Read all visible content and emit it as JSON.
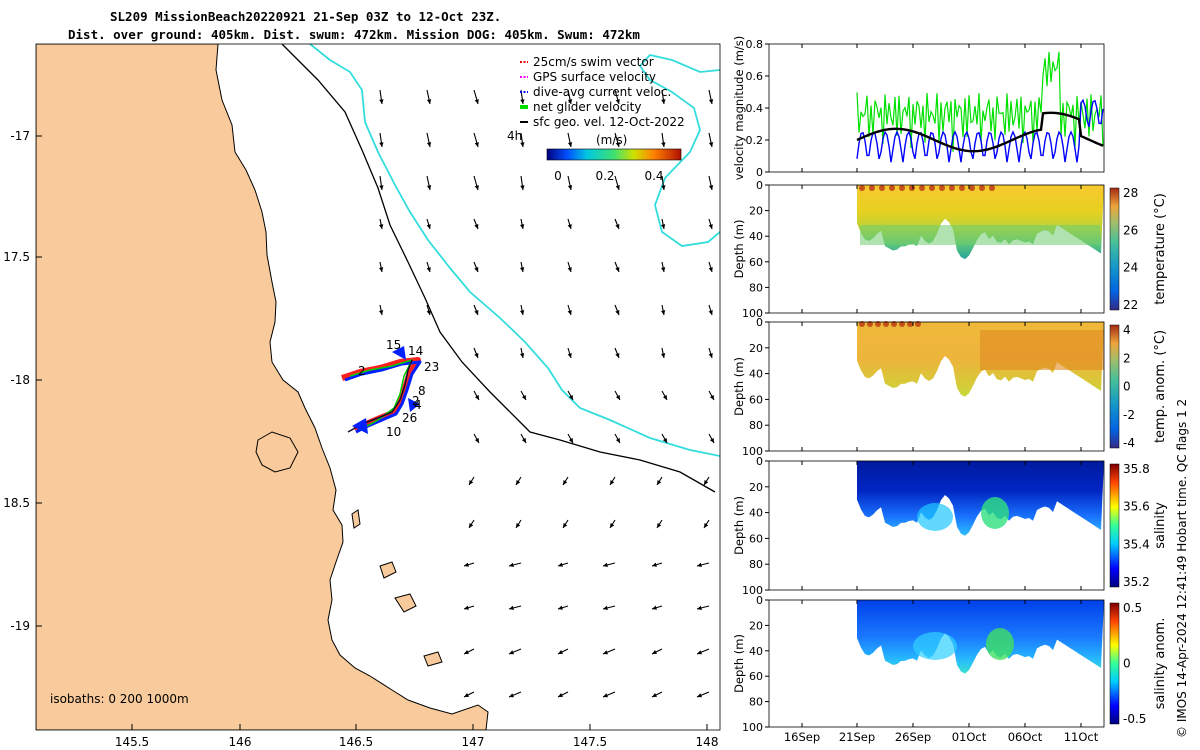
{
  "title_line1": "SL209 MissionBeach20220921 21-Sep 03Z to 12-Oct 23Z.",
  "title_line2": "Dist. over ground: 405km. Dist. swum: 472km. Mission DOG: 405km. Swum: 472km",
  "side_note": "© IMOS 14-Apr-2024 12:41:49 Hobart time. QC flags 1  2",
  "map": {
    "lon_ticks": [
      "145.5",
      "146",
      "146.5",
      "147",
      "147.5",
      "148"
    ],
    "lat_ticks": [
      "-17",
      "17.5",
      "-18",
      "18.5",
      "-19"
    ],
    "isobath_label": "isobaths: 0   200  1000m",
    "legend": [
      {
        "label": "25cm/s swim vector",
        "color": "#ff0000"
      },
      {
        "label": "GPS surface velocity",
        "color": "#ff00ff"
      },
      {
        "label": "dive-avg current veloc.",
        "color": "#0000ff"
      },
      {
        "label": "net glider velocity",
        "color": "#00e000"
      },
      {
        "label": "sfc geo. vel. 12-Oct-2022",
        "color": "#000000"
      }
    ],
    "legend_4h": "4h",
    "colorbar_label": "(m/s)",
    "colorbar_ticks": [
      "0",
      "0.2",
      "0.4"
    ],
    "track_labels": [
      "15",
      "14",
      "23",
      "2",
      "8",
      "2",
      "4",
      "26",
      "10"
    ]
  },
  "chart_data": [
    {
      "type": "line",
      "title": "",
      "ylabel": "velocity magnitude (m/s)",
      "ylim": [
        0,
        0.8
      ],
      "yticks": [
        "0",
        "0.2",
        "0.4",
        "0.6",
        "0.8"
      ],
      "series": [
        {
          "name": "net glider velocity",
          "color": "#00e000"
        },
        {
          "name": "dive-avg current veloc.",
          "color": "#0000ff"
        },
        {
          "name": "smoothed",
          "color": "#000000"
        }
      ]
    },
    {
      "type": "heatmap",
      "ylabel": "Depth (m)",
      "yticks": [
        "0",
        "20",
        "40",
        "60",
        "80",
        "100"
      ],
      "cbar_label": "temperature (°C)",
      "cbar_ticks": [
        "28",
        "26",
        "24",
        "22"
      ],
      "cmap": "parula"
    },
    {
      "type": "heatmap",
      "ylabel": "Depth (m)",
      "yticks": [
        "0",
        "20",
        "40",
        "60",
        "80",
        "100"
      ],
      "cbar_label": "temp. anom. (°C)",
      "cbar_ticks": [
        "4",
        "2",
        "0",
        "-2",
        "-4"
      ],
      "cmap": "parula"
    },
    {
      "type": "heatmap",
      "ylabel": "Depth (m)",
      "yticks": [
        "0",
        "20",
        "40",
        "60",
        "80",
        "100"
      ],
      "cbar_label": "salinity",
      "cbar_ticks": [
        "35.8",
        "35.6",
        "35.4",
        "35.2"
      ],
      "cmap": "jet"
    },
    {
      "type": "heatmap",
      "ylabel": "Depth (m)",
      "yticks": [
        "0",
        "20",
        "40",
        "60",
        "80",
        "100"
      ],
      "cbar_label": "salinity anom.",
      "cbar_ticks": [
        "0.5",
        "0",
        "-0.5"
      ],
      "cmap": "jet"
    }
  ],
  "time_axis": [
    "16Sep",
    "21Sep",
    "26Sep",
    "01Oct",
    "06Oct",
    "11Oct"
  ]
}
